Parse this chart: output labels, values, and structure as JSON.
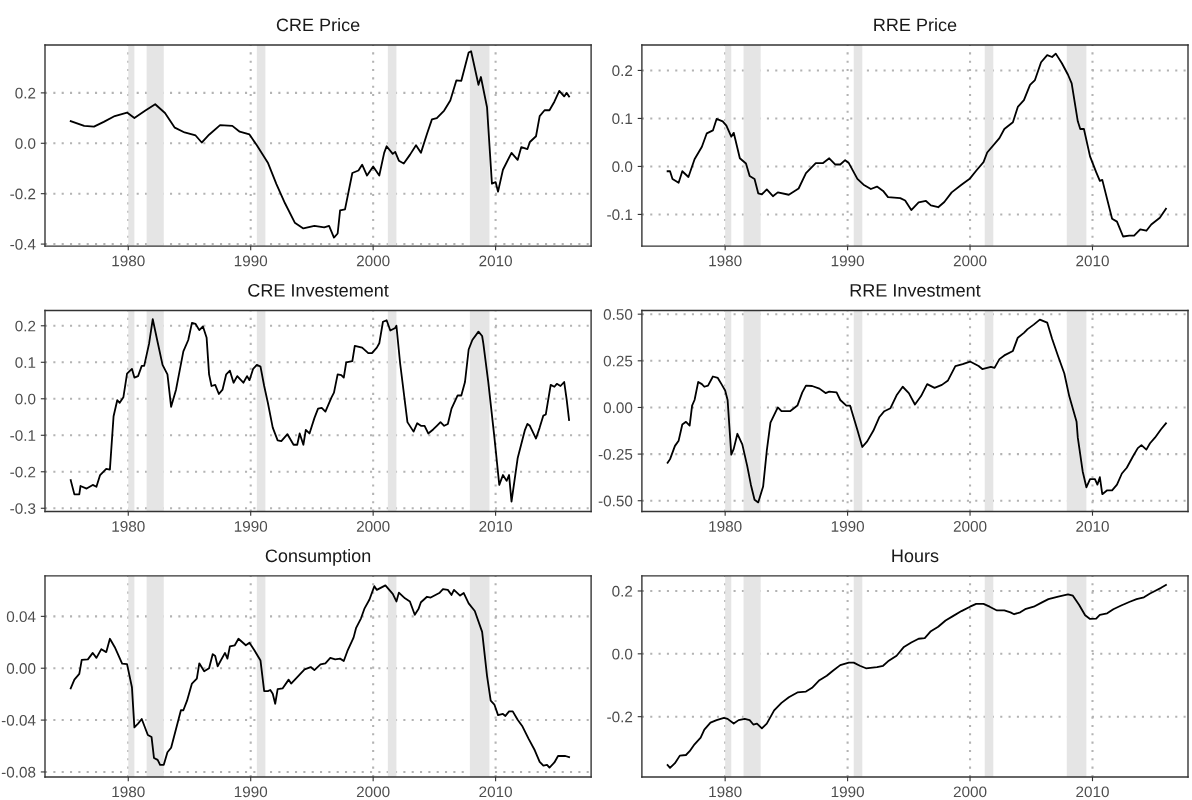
{
  "chart_data": [
    {
      "type": "line",
      "title": "CRE Price",
      "xlim": [
        1973.2,
        2017.8
      ],
      "xticks": [
        1980,
        1990,
        2000,
        2010
      ],
      "ylim": [
        -0.408,
        0.39
      ],
      "yticks": [
        {
          "value": -0.4,
          "label": "-0.4"
        },
        {
          "value": -0.2,
          "label": "-0.2"
        },
        {
          "value": 0,
          "label": "0.0"
        },
        {
          "value": 0.2,
          "label": "0.2"
        }
      ],
      "grid": true,
      "line_style": "solid",
      "bands": [
        {
          "axis": "x",
          "from": 1980.0,
          "to": 1980.5,
          "color": "#e5e5e5"
        },
        {
          "axis": "x",
          "from": 1981.5,
          "to": 1982.9,
          "color": "#e5e5e5"
        },
        {
          "axis": "x",
          "from": 1990.5,
          "to": 1991.2,
          "color": "#e5e5e5"
        },
        {
          "axis": "x",
          "from": 2001.2,
          "to": 2001.9,
          "color": "#e5e5e5"
        },
        {
          "axis": "x",
          "from": 2007.9,
          "to": 2009.5,
          "color": "#e5e5e5"
        }
      ],
      "series": [
        {
          "color": "#000000",
          "x": [
            1975.3,
            1976.4,
            1977.2,
            1978.0,
            1978.9,
            1979.9,
            1980.5,
            1981.4,
            1982.2,
            1983.0,
            1983.8,
            1984.6,
            1985.5,
            1986.0,
            1986.6,
            1987.5,
            1988.5,
            1989.1,
            1989.9,
            1990.5,
            1991.4,
            1992.1,
            1992.8,
            1993.6,
            1994.3,
            1995.2,
            1996.0,
            1996.4,
            1996.8,
            1997.1,
            1997.3,
            1997.7,
            1998.3,
            1998.8,
            1999.1,
            1999.5,
            2000.0,
            2000.5,
            2000.9,
            2001.1,
            2001.6,
            2001.8,
            2002.1,
            2002.5,
            2003.0,
            2003.5,
            2003.9,
            2004.4,
            2004.8,
            2005.2,
            2005.8,
            2006.3,
            2006.8,
            2007.2,
            2007.8,
            2008.0,
            2008.6,
            2008.8,
            2009.3,
            2009.7,
            2010.0,
            2010.2,
            2010.6,
            2011.3,
            2011.8,
            2012.1,
            2012.6,
            2012.8,
            2013.3,
            2013.6,
            2014.0,
            2014.4,
            2014.8,
            2015.2,
            2015.6,
            2015.8,
            2016.0
          ],
          "values": [
            0.088,
            0.069,
            0.066,
            0.085,
            0.108,
            0.122,
            0.1,
            0.13,
            0.155,
            0.12,
            0.062,
            0.043,
            0.031,
            0.003,
            0.034,
            0.072,
            0.069,
            0.046,
            0.035,
            -0.008,
            -0.077,
            -0.162,
            -0.238,
            -0.315,
            -0.338,
            -0.328,
            -0.334,
            -0.328,
            -0.374,
            -0.358,
            -0.266,
            -0.262,
            -0.118,
            -0.108,
            -0.085,
            -0.128,
            -0.092,
            -0.128,
            -0.038,
            -0.012,
            -0.042,
            -0.034,
            -0.069,
            -0.08,
            -0.046,
            -0.008,
            -0.038,
            0.038,
            0.095,
            0.1,
            0.13,
            0.17,
            0.25,
            0.248,
            0.36,
            0.365,
            0.232,
            0.263,
            0.143,
            -0.16,
            -0.154,
            -0.192,
            -0.105,
            -0.038,
            -0.066,
            -0.015,
            -0.023,
            0.005,
            0.028,
            0.108,
            0.131,
            0.131,
            0.165,
            0.208,
            0.186,
            0.2,
            0.186
          ]
        }
      ]
    },
    {
      "type": "line",
      "title": "RRE Price",
      "xlim": [
        1973.2,
        2017.8
      ],
      "xticks": [
        1980,
        1990,
        2000,
        2010
      ],
      "ylim": [
        -0.166,
        0.253
      ],
      "yticks": [
        {
          "value": -0.1,
          "label": "-0.1"
        },
        {
          "value": 0,
          "label": "0.0"
        },
        {
          "value": 0.1,
          "label": "0.1"
        },
        {
          "value": 0.2,
          "label": "0.2"
        }
      ],
      "grid": true,
      "line_style": "solid",
      "bands": [
        {
          "axis": "x",
          "from": 1980.0,
          "to": 1980.5,
          "color": "#e5e5e5"
        },
        {
          "axis": "x",
          "from": 1981.5,
          "to": 1982.9,
          "color": "#e5e5e5"
        },
        {
          "axis": "x",
          "from": 1990.5,
          "to": 1991.2,
          "color": "#e5e5e5"
        },
        {
          "axis": "x",
          "from": 2001.2,
          "to": 2001.9,
          "color": "#e5e5e5"
        },
        {
          "axis": "x",
          "from": 2007.9,
          "to": 2009.5,
          "color": "#e5e5e5"
        }
      ],
      "series": [
        {
          "color": "#000000",
          "x": [
            1975.3,
            1975.5,
            1975.7,
            1976.2,
            1976.5,
            1977.0,
            1977.5,
            1978.1,
            1978.5,
            1979.0,
            1979.3,
            1979.8,
            1980.1,
            1980.5,
            1980.7,
            1981.2,
            1981.7,
            1982.0,
            1982.4,
            1982.7,
            1983.0,
            1983.4,
            1983.9,
            1984.3,
            1985.2,
            1986.0,
            1986.6,
            1987.4,
            1988.0,
            1988.5,
            1989.0,
            1989.4,
            1989.8,
            1990.1,
            1990.8,
            1991.3,
            1991.9,
            1992.4,
            1992.9,
            1993.3,
            1994.3,
            1994.7,
            1995.2,
            1995.8,
            1996.4,
            1996.8,
            1997.4,
            1997.9,
            1998.5,
            1999.3,
            2000.0,
            2000.5,
            2001.1,
            2001.4,
            2002.4,
            2002.8,
            2003.5,
            2003.9,
            2004.4,
            2004.9,
            2005.3,
            2005.8,
            2006.3,
            2006.7,
            2007.0,
            2007.5,
            2008.0,
            2008.3,
            2008.8,
            2009.0,
            2009.3,
            2009.8,
            2010.3,
            2010.6,
            2010.8,
            2011.6,
            2012.0,
            2012.5,
            2013.0,
            2013.4,
            2013.9,
            2014.4,
            2014.8,
            2015.5,
            2016.0
          ],
          "values": [
            -0.01,
            -0.01,
            -0.026,
            -0.034,
            -0.01,
            -0.022,
            0.015,
            0.041,
            0.069,
            0.075,
            0.099,
            0.094,
            0.085,
            0.062,
            0.07,
            0.017,
            0.006,
            -0.02,
            -0.026,
            -0.056,
            -0.058,
            -0.048,
            -0.062,
            -0.054,
            -0.059,
            -0.046,
            -0.014,
            0.007,
            0.007,
            0.017,
            0.004,
            0.004,
            0.013,
            0.007,
            -0.026,
            -0.038,
            -0.047,
            -0.042,
            -0.051,
            -0.064,
            -0.066,
            -0.071,
            -0.091,
            -0.075,
            -0.072,
            -0.081,
            -0.085,
            -0.074,
            -0.054,
            -0.038,
            -0.025,
            -0.009,
            0.009,
            0.029,
            0.059,
            0.078,
            0.092,
            0.124,
            0.138,
            0.17,
            0.18,
            0.217,
            0.232,
            0.228,
            0.235,
            0.215,
            0.191,
            0.173,
            0.094,
            0.078,
            0.078,
            0.021,
            -0.012,
            -0.03,
            -0.028,
            -0.109,
            -0.115,
            -0.146,
            -0.144,
            -0.144,
            -0.131,
            -0.134,
            -0.121,
            -0.107,
            -0.088
          ]
        }
      ]
    },
    {
      "type": "line",
      "title": "CRE Investement",
      "xlim": [
        1973.2,
        2017.8
      ],
      "xticks": [
        1980,
        1990,
        2000,
        2010
      ],
      "ylim": [
        -0.309,
        0.242
      ],
      "yticks": [
        {
          "value": -0.3,
          "label": "-0.3"
        },
        {
          "value": -0.2,
          "label": "-0.2"
        },
        {
          "value": -0.1,
          "label": "-0.1"
        },
        {
          "value": 0,
          "label": "0.0"
        },
        {
          "value": 0.1,
          "label": "0.1"
        },
        {
          "value": 0.2,
          "label": "0.2"
        }
      ],
      "grid": true,
      "line_style": "solid",
      "bands": [
        {
          "axis": "x",
          "from": 1980.0,
          "to": 1980.5,
          "color": "#e5e5e5"
        },
        {
          "axis": "x",
          "from": 1981.5,
          "to": 1982.9,
          "color": "#e5e5e5"
        },
        {
          "axis": "x",
          "from": 1990.5,
          "to": 1991.2,
          "color": "#e5e5e5"
        },
        {
          "axis": "x",
          "from": 2001.2,
          "to": 2001.9,
          "color": "#e5e5e5"
        },
        {
          "axis": "x",
          "from": 2007.9,
          "to": 2009.5,
          "color": "#e5e5e5"
        }
      ],
      "series": [
        {
          "color": "#000000",
          "x": [
            1975.3,
            1975.6,
            1976.0,
            1976.1,
            1976.6,
            1977.1,
            1977.4,
            1977.7,
            1978.2,
            1978.5,
            1978.8,
            1979.1,
            1979.3,
            1979.6,
            1979.9,
            1980.3,
            1980.5,
            1980.8,
            1981.1,
            1981.3,
            1981.7,
            1982.0,
            1982.4,
            1982.8,
            1983.2,
            1983.5,
            1983.9,
            1984.5,
            1984.9,
            1985.2,
            1985.5,
            1985.8,
            1986.1,
            1986.4,
            1986.6,
            1986.8,
            1987.1,
            1987.4,
            1987.7,
            1988.0,
            1988.3,
            1988.6,
            1988.9,
            1989.4,
            1989.7,
            1989.9,
            1990.2,
            1990.5,
            1990.8,
            1991.1,
            1991.4,
            1991.8,
            1992.2,
            1992.5,
            1993.0,
            1993.5,
            1993.8,
            1994.0,
            1994.3,
            1994.5,
            1994.8,
            1995.2,
            1995.5,
            1995.8,
            1996.1,
            1996.6,
            1996.8,
            1997.1,
            1997.4,
            1997.6,
            1997.8,
            1998.3,
            1998.5,
            1999.1,
            1999.6,
            1999.9,
            2000.3,
            2000.5,
            2000.8,
            2001.1,
            2001.4,
            2001.8,
            2001.9,
            2002.2,
            2002.8,
            2003.3,
            2003.6,
            2003.9,
            2004.2,
            2004.5,
            2004.9,
            2005.2,
            2005.5,
            2005.8,
            2006.1,
            2006.4,
            2006.9,
            2007.2,
            2007.5,
            2007.8,
            2008.1,
            2008.6,
            2008.9,
            2009.0,
            2009.4,
            2009.9,
            2010.3,
            2010.6,
            2010.9,
            2011.1,
            2011.3,
            2011.8,
            2012.4,
            2012.6,
            2012.8,
            2013.3,
            2013.6,
            2013.9,
            2014.1,
            2014.5,
            2014.8,
            2015.0,
            2015.3,
            2015.6,
            2015.8,
            2016.0
          ],
          "values": [
            -0.223,
            -0.262,
            -0.262,
            -0.239,
            -0.246,
            -0.236,
            -0.241,
            -0.209,
            -0.192,
            -0.194,
            -0.048,
            -0.004,
            -0.011,
            0.004,
            0.069,
            0.082,
            0.058,
            0.062,
            0.09,
            0.09,
            0.151,
            0.218,
            0.155,
            0.093,
            0.067,
            -0.022,
            0.025,
            0.13,
            0.161,
            0.208,
            0.205,
            0.188,
            0.198,
            0.167,
            0.067,
            0.035,
            0.038,
            0.013,
            0.025,
            0.067,
            0.077,
            0.044,
            0.062,
            0.044,
            0.062,
            0.051,
            0.082,
            0.093,
            0.088,
            0.035,
            -0.011,
            -0.079,
            -0.114,
            -0.116,
            -0.097,
            -0.126,
            -0.126,
            -0.095,
            -0.126,
            -0.085,
            -0.095,
            -0.053,
            -0.027,
            -0.025,
            -0.035,
            0.004,
            0.017,
            0.067,
            0.065,
            0.058,
            0.1,
            0.103,
            0.145,
            0.14,
            0.125,
            0.125,
            0.14,
            0.152,
            0.211,
            0.215,
            0.187,
            0.194,
            0.2,
            0.098,
            -0.064,
            -0.09,
            -0.067,
            -0.074,
            -0.074,
            -0.095,
            -0.084,
            -0.074,
            -0.064,
            -0.074,
            -0.069,
            -0.027,
            0.009,
            0.009,
            0.046,
            0.135,
            0.161,
            0.184,
            0.172,
            0.151,
            0.046,
            -0.105,
            -0.236,
            -0.209,
            -0.225,
            -0.209,
            -0.282,
            -0.163,
            -0.085,
            -0.069,
            -0.074,
            -0.109,
            -0.079,
            -0.046,
            -0.043,
            0.038,
            0.033,
            0.041,
            0.035,
            0.046,
            -0.001,
            -0.058
          ]
        }
      ]
    },
    {
      "type": "line",
      "title": "RRE Investment",
      "xlim": [
        1973.2,
        2017.8
      ],
      "xticks": [
        1980,
        1990,
        2000,
        2010
      ],
      "ylim": [
        -0.558,
        0.52
      ],
      "yticks": [
        {
          "value": -0.5,
          "label": "-0.50"
        },
        {
          "value": -0.25,
          "label": "-0.25"
        },
        {
          "value": 0,
          "label": "0.00"
        },
        {
          "value": 0.25,
          "label": "0.25"
        },
        {
          "value": 0.5,
          "label": "0.50"
        }
      ],
      "grid": true,
      "line_style": "solid",
      "bands": [
        {
          "axis": "x",
          "from": 1980.0,
          "to": 1980.5,
          "color": "#e5e5e5"
        },
        {
          "axis": "x",
          "from": 1981.5,
          "to": 1982.9,
          "color": "#e5e5e5"
        },
        {
          "axis": "x",
          "from": 1990.5,
          "to": 1991.2,
          "color": "#e5e5e5"
        },
        {
          "axis": "x",
          "from": 2001.2,
          "to": 2001.9,
          "color": "#e5e5e5"
        },
        {
          "axis": "x",
          "from": 2007.9,
          "to": 2009.5,
          "color": "#e5e5e5"
        }
      ],
      "series": [
        {
          "color": "#000000",
          "x": [
            1975.3,
            1975.5,
            1975.9,
            1976.2,
            1976.5,
            1976.8,
            1977.1,
            1977.3,
            1977.5,
            1977.8,
            1978.1,
            1978.3,
            1978.6,
            1979.0,
            1979.4,
            1979.7,
            1980.0,
            1980.2,
            1980.5,
            1980.7,
            1981.0,
            1981.4,
            1981.8,
            1982.1,
            1982.4,
            1982.7,
            1983.1,
            1983.4,
            1983.7,
            1984.3,
            1984.6,
            1985.3,
            1985.9,
            1986.3,
            1986.6,
            1987.1,
            1987.7,
            1988.2,
            1988.5,
            1989.1,
            1989.4,
            1989.9,
            1990.2,
            1990.8,
            1991.2,
            1991.6,
            1992.1,
            1992.6,
            1993.0,
            1993.5,
            1994.0,
            1994.5,
            1995.0,
            1995.5,
            1996.0,
            1996.5,
            1997.1,
            1997.7,
            1998.2,
            1998.8,
            1999.4,
            2000.0,
            2000.7,
            2001.0,
            2001.7,
            2002.0,
            2002.4,
            2002.8,
            2003.5,
            2003.9,
            2004.4,
            2004.7,
            2005.2,
            2005.7,
            2006.3,
            2006.7,
            2007.2,
            2007.7,
            2008.1,
            2008.7,
            2008.8,
            2009.2,
            2009.5,
            2009.8,
            2010.2,
            2010.4,
            2010.6,
            2010.8,
            2011.2,
            2011.6,
            2012.0,
            2012.4,
            2012.8,
            2013.3,
            2013.7,
            2014.0,
            2014.4,
            2014.7,
            2015.1,
            2015.6,
            2016.0
          ],
          "values": [
            -0.297,
            -0.277,
            -0.206,
            -0.178,
            -0.091,
            -0.077,
            -0.097,
            0.01,
            0.04,
            0.137,
            0.125,
            0.111,
            0.117,
            0.166,
            0.158,
            0.125,
            0.091,
            0.04,
            -0.253,
            -0.222,
            -0.141,
            -0.198,
            -0.313,
            -0.414,
            -0.495,
            -0.509,
            -0.424,
            -0.232,
            -0.081,
            0.0,
            -0.02,
            -0.02,
            0.01,
            0.081,
            0.117,
            0.115,
            0.101,
            0.077,
            0.085,
            0.081,
            0.04,
            0.01,
            0.01,
            -0.121,
            -0.212,
            -0.182,
            -0.125,
            -0.051,
            -0.02,
            -0.004,
            0.065,
            0.111,
            0.077,
            0.016,
            0.061,
            0.125,
            0.105,
            0.121,
            0.145,
            0.222,
            0.232,
            0.246,
            0.222,
            0.206,
            0.218,
            0.212,
            0.259,
            0.279,
            0.303,
            0.374,
            0.4,
            0.42,
            0.444,
            0.471,
            0.455,
            0.368,
            0.273,
            0.182,
            0.061,
            -0.077,
            -0.162,
            -0.343,
            -0.428,
            -0.384,
            -0.384,
            -0.414,
            -0.374,
            -0.465,
            -0.444,
            -0.444,
            -0.414,
            -0.354,
            -0.323,
            -0.263,
            -0.218,
            -0.202,
            -0.226,
            -0.192,
            -0.162,
            -0.117,
            -0.085
          ]
        }
      ]
    },
    {
      "type": "line",
      "title": "Consumption",
      "xlim": [
        1973.2,
        2017.8
      ],
      "xticks": [
        1980,
        1990,
        2000,
        2010
      ],
      "ylim": [
        -0.0839,
        0.0712
      ],
      "yticks": [
        {
          "value": -0.08,
          "label": "-0.08"
        },
        {
          "value": -0.04,
          "label": "-0.04"
        },
        {
          "value": 0,
          "label": "0.00"
        },
        {
          "value": 0.04,
          "label": "0.04"
        }
      ],
      "grid": true,
      "line_style": "solid",
      "bands": [
        {
          "axis": "x",
          "from": 1980.0,
          "to": 1980.5,
          "color": "#e5e5e5"
        },
        {
          "axis": "x",
          "from": 1981.5,
          "to": 1982.9,
          "color": "#e5e5e5"
        },
        {
          "axis": "x",
          "from": 1990.5,
          "to": 1991.2,
          "color": "#e5e5e5"
        },
        {
          "axis": "x",
          "from": 2001.2,
          "to": 2001.9,
          "color": "#e5e5e5"
        },
        {
          "axis": "x",
          "from": 2007.9,
          "to": 2009.5,
          "color": "#e5e5e5"
        }
      ],
      "series": [
        {
          "color": "#000000",
          "x": [
            1975.3,
            1975.6,
            1976.0,
            1976.2,
            1976.7,
            1977.1,
            1977.4,
            1977.8,
            1978.2,
            1978.5,
            1978.9,
            1979.5,
            1979.9,
            1980.3,
            1980.5,
            1980.8,
            1981.1,
            1981.6,
            1981.9,
            1982.1,
            1982.4,
            1982.6,
            1982.9,
            1983.2,
            1983.5,
            1984.3,
            1984.5,
            1984.8,
            1985.2,
            1985.6,
            1985.8,
            1986.2,
            1986.6,
            1986.9,
            1987.1,
            1987.3,
            1987.9,
            1988.1,
            1988.3,
            1988.7,
            1989.0,
            1989.6,
            1989.9,
            1990.3,
            1990.8,
            1991.1,
            1991.4,
            1991.6,
            1991.8,
            1992.0,
            1992.2,
            1992.6,
            1993.1,
            1993.3,
            1993.9,
            1994.4,
            1994.9,
            1995.2,
            1995.7,
            1996.1,
            1996.5,
            1996.9,
            1997.3,
            1997.6,
            1997.9,
            1998.4,
            1998.6,
            1999.0,
            1999.3,
            1999.7,
            2000.1,
            2000.3,
            2001.0,
            2001.6,
            2001.9,
            2002.1,
            2002.6,
            2003.0,
            2003.4,
            2003.7,
            2003.9,
            2004.4,
            2004.7,
            2005.4,
            2005.7,
            2006.1,
            2006.4,
            2006.6,
            2007.1,
            2007.4,
            2007.8,
            2008.3,
            2008.9,
            2009.3,
            2009.6,
            2009.9,
            2010.2,
            2010.6,
            2010.8,
            2011.1,
            2011.4,
            2011.8,
            2012.2,
            2012.7,
            2013.2,
            2013.6,
            2013.9,
            2014.2,
            2014.4,
            2014.8,
            2015.1,
            2015.7,
            2016.0
          ],
          "values": [
            -0.0156,
            -0.0088,
            -0.0044,
            0.0065,
            0.0068,
            0.0118,
            0.008,
            0.0147,
            0.0124,
            0.0227,
            0.0162,
            0.0035,
            0.0032,
            -0.0147,
            -0.0456,
            -0.0427,
            -0.0392,
            -0.0515,
            -0.053,
            -0.0692,
            -0.0707,
            -0.0745,
            -0.0745,
            -0.0648,
            -0.0613,
            -0.0324,
            -0.0324,
            -0.025,
            -0.0118,
            -0.008,
            0.0038,
            -0.0024,
            0.0,
            0.0109,
            0.0094,
            0.0015,
            0.0118,
            0.0074,
            0.0168,
            0.0177,
            0.0227,
            0.0177,
            0.0197,
            0.0138,
            0.0059,
            -0.0177,
            -0.0177,
            -0.0168,
            -0.0197,
            -0.0274,
            -0.0162,
            -0.0156,
            -0.0088,
            -0.0118,
            -0.0059,
            -0.0009,
            0.0009,
            -0.0015,
            0.0029,
            0.0038,
            0.008,
            0.0068,
            0.0074,
            0.0056,
            0.0133,
            0.0236,
            0.0309,
            0.0383,
            0.0462,
            0.053,
            0.0633,
            0.0604,
            0.0639,
            0.0574,
            0.0515,
            0.0583,
            0.0539,
            0.0515,
            0.0412,
            0.0456,
            0.0509,
            0.0551,
            0.0545,
            0.058,
            0.061,
            0.0604,
            0.0565,
            0.0604,
            0.056,
            0.058,
            0.05,
            0.0441,
            0.028,
            -0.0059,
            -0.025,
            -0.028,
            -0.0362,
            -0.0353,
            -0.0368,
            -0.0333,
            -0.0333,
            -0.0398,
            -0.045,
            -0.0545,
            -0.0633,
            -0.0722,
            -0.0751,
            -0.0745,
            -0.0766,
            -0.0727,
            -0.0677,
            -0.0677,
            -0.0686
          ]
        }
      ]
    },
    {
      "type": "line",
      "title": "Hours",
      "xlim": [
        1973.2,
        2017.8
      ],
      "xticks": [
        1980,
        1990,
        2000,
        2010
      ],
      "ylim": [
        -0.392,
        0.248
      ],
      "yticks": [
        {
          "value": -0.2,
          "label": "-0.2"
        },
        {
          "value": 0,
          "label": "0.0"
        },
        {
          "value": 0.2,
          "label": "0.2"
        }
      ],
      "grid": true,
      "line_style": "solid",
      "bands": [
        {
          "axis": "x",
          "from": 1980.0,
          "to": 1980.5,
          "color": "#e5e5e5"
        },
        {
          "axis": "x",
          "from": 1981.5,
          "to": 1982.9,
          "color": "#e5e5e5"
        },
        {
          "axis": "x",
          "from": 1990.5,
          "to": 1991.2,
          "color": "#e5e5e5"
        },
        {
          "axis": "x",
          "from": 2001.2,
          "to": 2001.9,
          "color": "#e5e5e5"
        },
        {
          "axis": "x",
          "from": 2007.9,
          "to": 2009.5,
          "color": "#e5e5e5"
        }
      ],
      "series": [
        {
          "color": "#000000",
          "x": [
            1975.3,
            1975.5,
            1975.9,
            1976.3,
            1976.8,
            1977.1,
            1977.5,
            1978.0,
            1978.3,
            1978.8,
            1979.3,
            1979.9,
            1980.2,
            1980.7,
            1981.1,
            1981.6,
            1982.0,
            1982.3,
            1982.6,
            1983.0,
            1983.4,
            1984.0,
            1984.6,
            1985.2,
            1985.9,
            1986.6,
            1987.1,
            1987.7,
            1988.3,
            1988.8,
            1989.4,
            1990.1,
            1990.5,
            1991.0,
            1991.5,
            1992.4,
            1992.9,
            1993.3,
            1994.0,
            1994.6,
            1995.2,
            1995.8,
            1996.3,
            1996.8,
            1997.4,
            1998.0,
            1998.6,
            1999.3,
            2000.0,
            2000.5,
            2001.1,
            2001.6,
            2002.2,
            2002.8,
            2003.3,
            2003.6,
            2004.1,
            2004.5,
            2005.2,
            2005.8,
            2006.4,
            2007.2,
            2008.0,
            2008.4,
            2008.9,
            2009.4,
            2009.8,
            2010.3,
            2010.6,
            2011.2,
            2011.7,
            2012.3,
            2013.0,
            2013.6,
            2014.2,
            2014.7,
            2015.1,
            2015.6,
            2016.0
          ],
          "values": [
            -0.354,
            -0.363,
            -0.348,
            -0.324,
            -0.322,
            -0.31,
            -0.288,
            -0.267,
            -0.241,
            -0.219,
            -0.211,
            -0.204,
            -0.207,
            -0.222,
            -0.211,
            -0.207,
            -0.211,
            -0.225,
            -0.222,
            -0.237,
            -0.222,
            -0.18,
            -0.156,
            -0.138,
            -0.123,
            -0.12,
            -0.108,
            -0.084,
            -0.07,
            -0.054,
            -0.036,
            -0.028,
            -0.028,
            -0.038,
            -0.046,
            -0.042,
            -0.038,
            -0.024,
            -0.006,
            0.022,
            0.036,
            0.048,
            0.05,
            0.072,
            0.086,
            0.106,
            0.12,
            0.136,
            0.15,
            0.159,
            0.159,
            0.15,
            0.138,
            0.138,
            0.132,
            0.126,
            0.132,
            0.142,
            0.15,
            0.162,
            0.174,
            0.182,
            0.189,
            0.185,
            0.156,
            0.123,
            0.111,
            0.112,
            0.124,
            0.129,
            0.142,
            0.153,
            0.165,
            0.174,
            0.18,
            0.192,
            0.2,
            0.21,
            0.219
          ]
        }
      ]
    }
  ]
}
